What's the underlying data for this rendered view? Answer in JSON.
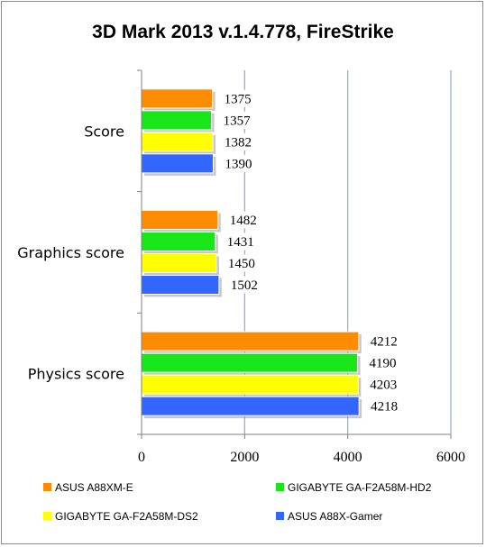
{
  "chart_data": {
    "type": "bar",
    "orientation": "horizontal",
    "title": "3D Mark 2013 v.1.4.778, FireStrike",
    "categories": [
      "Score",
      "Graphics score",
      "Physics score"
    ],
    "series": [
      {
        "name": "ASUS A88XM-E",
        "color": "#ff8c00",
        "values": [
          1375,
          1482,
          4212
        ]
      },
      {
        "name": "GIGABYTE GA-F2A58M-HD2",
        "color": "#19e619",
        "values": [
          1357,
          1431,
          4190
        ]
      },
      {
        "name": "GIGABYTE GA-F2A58M-DS2",
        "color": "#ffff00",
        "values": [
          1382,
          1450,
          4203
        ]
      },
      {
        "name": "ASUS A88X-Gamer",
        "color": "#3366ff",
        "values": [
          1390,
          1502,
          4218
        ]
      }
    ],
    "xticks": [
      "0",
      "2000",
      "4000",
      "6000"
    ],
    "xlim": [
      0,
      6000
    ],
    "grid": true,
    "legend": "bottom"
  }
}
